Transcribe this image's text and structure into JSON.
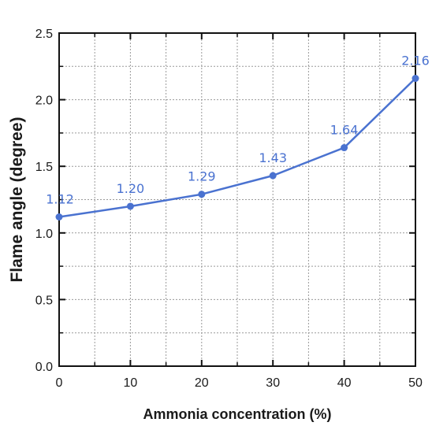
{
  "chart_data": {
    "type": "line",
    "title": "",
    "xlabel": "Ammonia concentration (%)",
    "ylabel": "Flame angle (degree)",
    "xlim": [
      0,
      50
    ],
    "ylim": [
      0,
      2.5
    ],
    "x_ticks": [
      "0",
      "10",
      "20",
      "30",
      "40",
      "50"
    ],
    "y_ticks": [
      "0.0",
      "0.5",
      "1.0",
      "1.5",
      "2.0",
      "2.5"
    ],
    "grid": true,
    "series": [
      {
        "x": [
          0,
          10,
          20,
          30,
          40,
          50
        ],
        "values": [
          1.12,
          1.2,
          1.29,
          1.43,
          1.64,
          2.16
        ],
        "labels": [
          "1.12",
          "1.20",
          "1.29",
          "1.43",
          "1.64",
          "2.16"
        ],
        "color": "#4a72d0"
      }
    ]
  }
}
